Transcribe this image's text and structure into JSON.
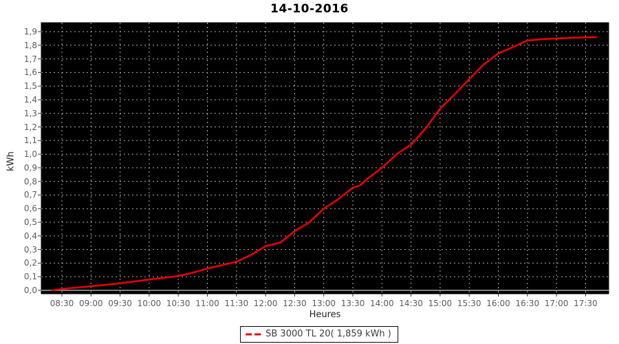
{
  "page": {
    "title": "14-10-2016"
  },
  "colors": {
    "page_background": "#ffffff",
    "plot_background": "#000000",
    "grid_line": "#b4b4b4",
    "zero_baseline": "#808080",
    "series_red": "#e80000",
    "tick_label": "#5a5a5a",
    "axis_title": "#222222",
    "title": "#000000"
  },
  "chart_data": {
    "type": "line",
    "title": "14-10-2016",
    "xlabel": "Heures",
    "ylabel": "kWh",
    "grid": "dashed gray on black background",
    "legend_position": "bottom-center",
    "legend": {
      "label": "SB 3000 TL 20( 1,859 kWh )",
      "swatch_color": "#e80000"
    },
    "x_ticks": [
      "08:30",
      "09:00",
      "09:30",
      "10:00",
      "10:30",
      "11:00",
      "11:30",
      "12:00",
      "12:30",
      "13:00",
      "13:30",
      "14:00",
      "14:30",
      "15:00",
      "15:30",
      "16:00",
      "16:30",
      "17:00",
      "17:30"
    ],
    "y_ticks": [
      "0,0",
      "0,1",
      "0,2",
      "0,3",
      "0,4",
      "0,5",
      "0,6",
      "0,7",
      "0,8",
      "0,9",
      "1,0",
      "1,1",
      "1,2",
      "1,3",
      "1,4",
      "1,5",
      "1,6",
      "1,7",
      "1,8",
      "1,9"
    ],
    "x_tick_hours": [
      8.5,
      9.0,
      9.5,
      10.0,
      10.5,
      11.0,
      11.5,
      12.0,
      12.5,
      13.0,
      13.5,
      14.0,
      14.5,
      15.0,
      15.5,
      16.0,
      16.5,
      17.0,
      17.5
    ],
    "y_tick_values": [
      0.0,
      0.1,
      0.2,
      0.3,
      0.4,
      0.5,
      0.6,
      0.7,
      0.8,
      0.9,
      1.0,
      1.1,
      1.2,
      1.3,
      1.4,
      1.5,
      1.6,
      1.7,
      1.8,
      1.9
    ],
    "xlim_hours": [
      8.14,
      17.9
    ],
    "ylim": [
      -0.03,
      1.97
    ],
    "series": [
      {
        "name": "SB 3000 TL 20",
        "total_energy_kwh": 1.859,
        "color": "#e80000",
        "points_hour_kwh": [
          [
            8.33,
            0.0
          ],
          [
            8.5,
            0.01
          ],
          [
            8.75,
            0.02
          ],
          [
            9.0,
            0.03
          ],
          [
            9.25,
            0.041
          ],
          [
            9.5,
            0.052
          ],
          [
            9.75,
            0.065
          ],
          [
            10.0,
            0.08
          ],
          [
            10.25,
            0.092
          ],
          [
            10.5,
            0.105
          ],
          [
            10.75,
            0.13
          ],
          [
            11.0,
            0.16
          ],
          [
            11.25,
            0.185
          ],
          [
            11.5,
            0.21
          ],
          [
            11.75,
            0.26
          ],
          [
            12.0,
            0.325
          ],
          [
            12.25,
            0.35
          ],
          [
            12.5,
            0.435
          ],
          [
            12.75,
            0.5
          ],
          [
            13.0,
            0.6
          ],
          [
            13.25,
            0.67
          ],
          [
            13.5,
            0.755
          ],
          [
            13.62,
            0.77
          ],
          [
            13.75,
            0.82
          ],
          [
            14.0,
            0.9
          ],
          [
            14.25,
            1.0
          ],
          [
            14.5,
            1.07
          ],
          [
            14.75,
            1.19
          ],
          [
            15.0,
            1.335
          ],
          [
            15.25,
            1.44
          ],
          [
            15.5,
            1.552
          ],
          [
            15.75,
            1.66
          ],
          [
            16.0,
            1.74
          ],
          [
            16.25,
            1.787
          ],
          [
            16.5,
            1.835
          ],
          [
            16.75,
            1.845
          ],
          [
            17.0,
            1.85
          ],
          [
            17.25,
            1.855
          ],
          [
            17.5,
            1.858
          ],
          [
            17.68,
            1.859
          ]
        ]
      }
    ]
  }
}
